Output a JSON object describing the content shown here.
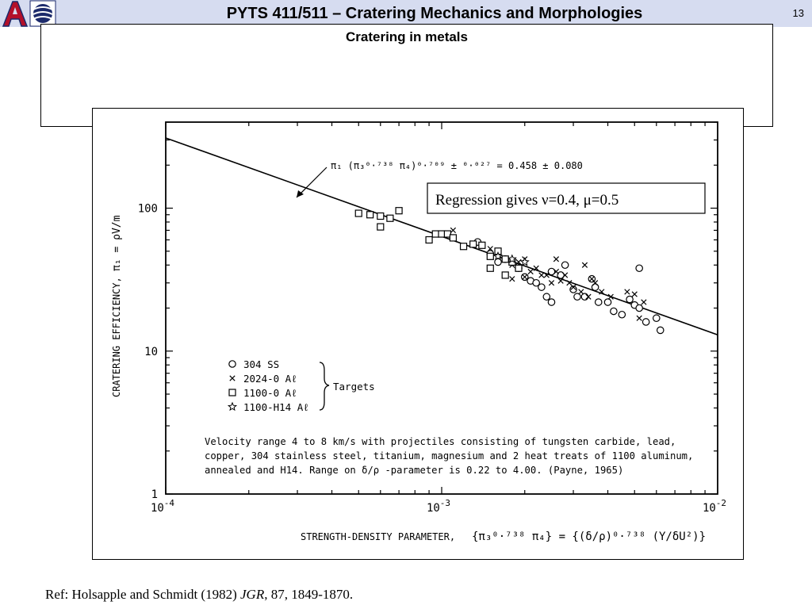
{
  "slide": {
    "title": "PYTS 411/511 – Cratering Mechanics and Morphologies",
    "page_number": "13",
    "subtitle": "Cratering in metals",
    "reference_prefix": "Ref:  Holsapple and Schmidt (1982)  ",
    "reference_journal": "JGR",
    "reference_suffix": ", 87, 1849-1870."
  },
  "chart_data": {
    "type": "scatter",
    "xscale": "log",
    "yscale": "log",
    "xlim": [
      0.0001,
      0.01
    ],
    "ylim": [
      1,
      400
    ],
    "xticks": [
      {
        "value": 0.0001,
        "base": "10",
        "exp": "-4"
      },
      {
        "value": 0.001,
        "base": "10",
        "exp": "-3"
      },
      {
        "value": 0.01,
        "base": "10",
        "exp": "-2"
      }
    ],
    "yticks": [
      {
        "value": 1,
        "label": "1"
      },
      {
        "value": 10,
        "label": "10"
      },
      {
        "value": 100,
        "label": "100"
      }
    ],
    "ylabel": "CRATERING EFFICIENCY,",
    "ylabel_symbol": "π₁ = ρV/m",
    "xlabel": "STRENGTH-DENSITY PARAMETER,",
    "xlabel_formula": "{π₃⁰·⁷³⁸ π₄} = {(δ/ρ)⁰·⁷³⁸ (Y/δU²)}",
    "fit_line": {
      "x": [
        0.0001,
        0.01
      ],
      "y": [
        310,
        13
      ],
      "label": "π₁ (π₃⁰·⁷³⁸ π₄)⁰·⁷⁰⁹ ± ⁰·⁰²⁷ = 0.458 ± 0.080"
    },
    "callout": "Regression gives ν=0.4, μ=0.5",
    "legend": {
      "placement": "lower-left",
      "entries": [
        "304 SS",
        "2024-0 Aℓ",
        "1100-0 Aℓ",
        "1100-H14 Aℓ"
      ],
      "group_label": "Targets"
    },
    "note_lines": [
      "Velocity range 4 to 8 km/s with projectiles consisting of tungsten carbide, lead,",
      "copper, 304 stainless steel, titanium, magnesium and 2 heat treats of 1100 aluminum,",
      "annealed and H14.  Range on δ/ρ -parameter is 0.22 to 4.00.  (Payne, 1965)"
    ],
    "series": [
      {
        "name": "304 SS",
        "marker": "circle",
        "points": [
          [
            0.00135,
            58
          ],
          [
            0.0015,
            48
          ],
          [
            0.0016,
            42
          ],
          [
            0.0017,
            44
          ],
          [
            0.0019,
            38
          ],
          [
            0.002,
            33
          ],
          [
            0.0021,
            31
          ],
          [
            0.0022,
            30
          ],
          [
            0.0023,
            28
          ],
          [
            0.0024,
            24
          ],
          [
            0.0025,
            22
          ],
          [
            0.0027,
            34
          ],
          [
            0.0028,
            40
          ],
          [
            0.003,
            27
          ],
          [
            0.0031,
            24
          ],
          [
            0.0033,
            24
          ],
          [
            0.0035,
            32
          ],
          [
            0.0037,
            22
          ],
          [
            0.004,
            22
          ],
          [
            0.0042,
            19
          ],
          [
            0.0045,
            18
          ],
          [
            0.0048,
            23
          ],
          [
            0.005,
            21
          ],
          [
            0.0052,
            20
          ],
          [
            0.0055,
            16
          ],
          [
            0.006,
            17
          ],
          [
            0.0062,
            14
          ],
          [
            0.0052,
            38
          ],
          [
            0.0036,
            28
          ],
          [
            0.0025,
            36
          ]
        ]
      },
      {
        "name": "2024-0 Aℓ",
        "marker": "x",
        "points": [
          [
            0.0011,
            70
          ],
          [
            0.0013,
            56
          ],
          [
            0.0014,
            55
          ],
          [
            0.0015,
            52
          ],
          [
            0.0016,
            46
          ],
          [
            0.0017,
            44
          ],
          [
            0.0018,
            40
          ],
          [
            0.0019,
            42
          ],
          [
            0.002,
            44
          ],
          [
            0.0021,
            36
          ],
          [
            0.0022,
            38
          ],
          [
            0.0023,
            34
          ],
          [
            0.0024,
            34
          ],
          [
            0.0025,
            30
          ],
          [
            0.0026,
            36
          ],
          [
            0.0027,
            31
          ],
          [
            0.0028,
            34
          ],
          [
            0.0029,
            30
          ],
          [
            0.003,
            28
          ],
          [
            0.0032,
            26
          ],
          [
            0.0034,
            24
          ],
          [
            0.0035,
            32
          ],
          [
            0.0036,
            30
          ],
          [
            0.0038,
            26
          ],
          [
            0.0041,
            24
          ],
          [
            0.0047,
            26
          ],
          [
            0.005,
            25
          ],
          [
            0.0052,
            17
          ],
          [
            0.0054,
            22
          ],
          [
            0.0018,
            32
          ],
          [
            0.0015,
            38
          ],
          [
            0.002,
            33
          ],
          [
            0.0026,
            44
          ],
          [
            0.0033,
            40
          ]
        ]
      },
      {
        "name": "1100-0 Aℓ",
        "marker": "square",
        "points": [
          [
            0.0005,
            92
          ],
          [
            0.00055,
            90
          ],
          [
            0.0006,
            88
          ],
          [
            0.0006,
            74
          ],
          [
            0.00065,
            85
          ],
          [
            0.0007,
            96
          ],
          [
            0.0009,
            60
          ],
          [
            0.00095,
            66
          ],
          [
            0.001,
            66
          ],
          [
            0.00105,
            66
          ],
          [
            0.0011,
            62
          ],
          [
            0.0012,
            54
          ],
          [
            0.0013,
            56
          ],
          [
            0.0014,
            55
          ],
          [
            0.0015,
            46
          ],
          [
            0.0016,
            50
          ],
          [
            0.0017,
            44
          ],
          [
            0.0018,
            42
          ],
          [
            0.0019,
            38
          ],
          [
            0.0015,
            38
          ],
          [
            0.0017,
            34
          ]
        ]
      },
      {
        "name": "1100-H14 Aℓ",
        "marker": "star",
        "points": [
          [
            0.0016,
            46
          ],
          [
            0.0018,
            44
          ],
          [
            0.002,
            42
          ]
        ]
      }
    ]
  }
}
